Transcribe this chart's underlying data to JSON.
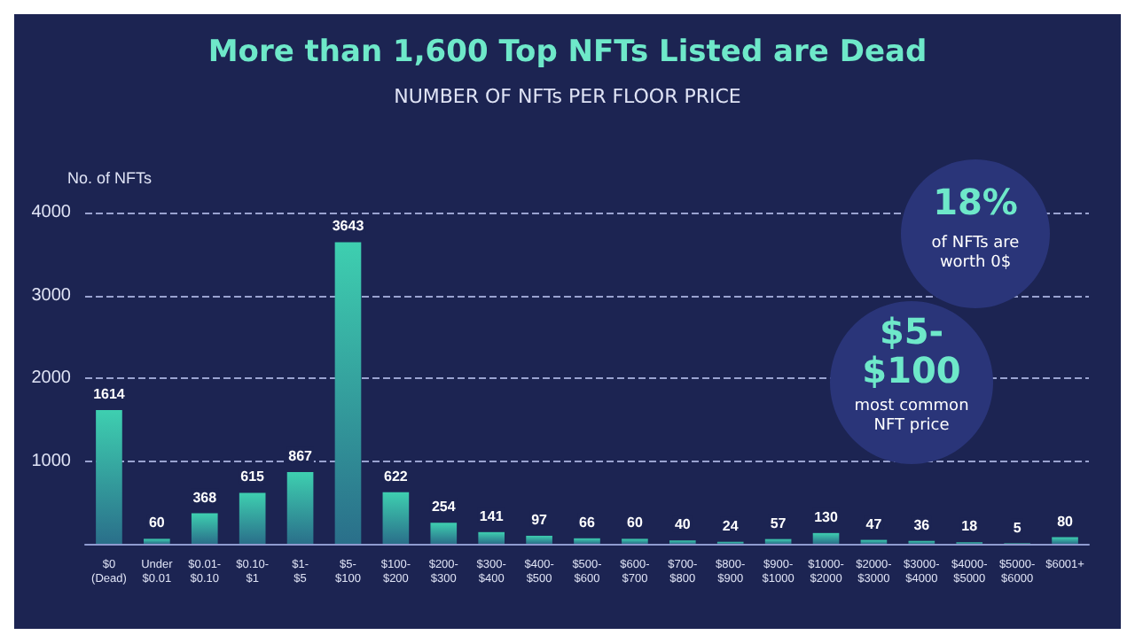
{
  "chart_data": {
    "type": "bar",
    "title": "More than 1,600 Top NFTs Listed are Dead",
    "subtitle": "NUMBER OF NFTs PER FLOOR PRICE",
    "ylabel": "No. of NFTs",
    "categories": [
      "$0\n(Dead)",
      "Under\n$0.01",
      "$0.01-\n$0.10",
      "$0.10-\n$1",
      "$1-\n$5",
      "$5-\n$100",
      "$100-\n$200",
      "$200-\n$300",
      "$300-\n$400",
      "$400-\n$500",
      "$500-\n$600",
      "$600-\n$700",
      "$700-\n$800",
      "$800-\n$900",
      "$900-\n$1000",
      "$1000-\n$2000",
      "$2000-\n$3000",
      "$3000-\n$4000",
      "$4000-\n$5000",
      "$5000-\n$6000",
      "$6001+"
    ],
    "values": [
      1614,
      60,
      368,
      615,
      867,
      3643,
      622,
      254,
      141,
      97,
      66,
      60,
      40,
      24,
      57,
      130,
      47,
      36,
      18,
      5,
      80
    ],
    "color": "#3ecfb0",
    "ylim": [
      0,
      4000
    ],
    "yticks": [
      1000,
      2000,
      3000,
      4000
    ],
    "grid": "y",
    "data_labels": true,
    "annotations": [
      "18%",
      "of NFTs are\nworth 0$",
      "$5-\n$100",
      "most common\nNFT price"
    ]
  }
}
